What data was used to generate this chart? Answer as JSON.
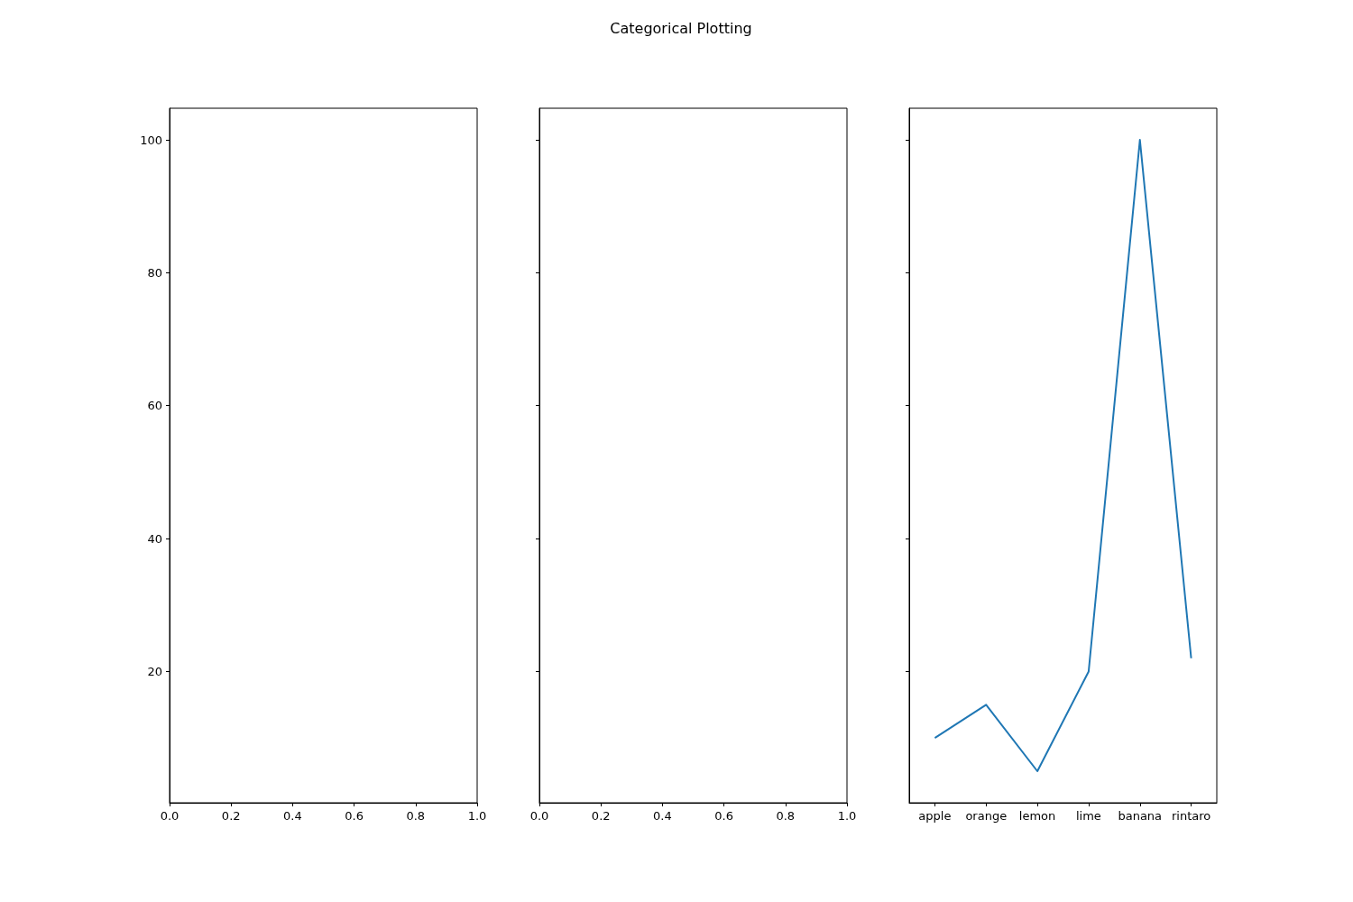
{
  "chart_data": [
    {
      "type": "line",
      "xlim": [
        0,
        1
      ],
      "xticks": [
        {
          "value": 0,
          "label": "0.0"
        },
        {
          "value": 0.2,
          "label": "0.2"
        },
        {
          "value": 0.4,
          "label": "0.4"
        },
        {
          "value": 0.6,
          "label": "0.6"
        },
        {
          "value": 0.8,
          "label": "0.8"
        },
        {
          "value": 1,
          "label": "1.0"
        }
      ],
      "ylim": [
        0.25,
        104.75
      ],
      "yticks": [
        20,
        40,
        60,
        80,
        100
      ]
    },
    {
      "type": "line",
      "title": "Categorical Plotting",
      "xlim": [
        0,
        1
      ],
      "xticks": [
        {
          "value": 0,
          "label": "0.0"
        },
        {
          "value": 0.2,
          "label": "0.2"
        },
        {
          "value": 0.4,
          "label": "0.4"
        },
        {
          "value": 0.6,
          "label": "0.6"
        },
        {
          "value": 0.8,
          "label": "0.8"
        },
        {
          "value": 1,
          "label": "1.0"
        }
      ],
      "ylim": [
        0.25,
        104.75
      ],
      "yticks": [
        20,
        40,
        60,
        80,
        100
      ],
      "tick_labels": "x"
    },
    {
      "type": "line",
      "categories": [
        "apple",
        "orange",
        "lemon",
        "lime",
        "banana",
        "rintaro"
      ],
      "series": [
        {
          "color": "#1f77b4",
          "values": [
            10,
            15,
            5,
            20,
            100,
            22
          ]
        }
      ],
      "ylim": [
        0.25,
        104.75
      ],
      "yticks": [
        20,
        40,
        60,
        80,
        100
      ],
      "tick_labels": "x",
      "marker": "none"
    }
  ]
}
